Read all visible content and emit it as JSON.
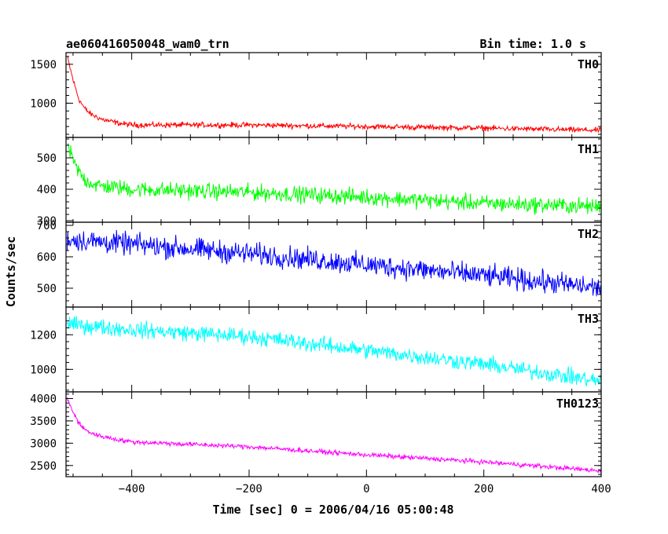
{
  "header": {
    "title": "ae060416050048_wam0_trn",
    "bin_time": "Bin time: 1.0 s"
  },
  "chart_data": {
    "type": "line",
    "title": "ae060416050048_wam0_trn",
    "subtitle": "Bin time: 1.0 s",
    "xlabel": "Time [sec] 0 = 2006/04/16 05:00:48",
    "ylabel": "Counts/sec",
    "xlim": [
      -512,
      400
    ],
    "x_ticks": [
      -400,
      -200,
      0,
      200,
      400
    ],
    "x_tick_labels": [
      "−400",
      "−200",
      "0",
      "200",
      "400"
    ],
    "panels": [
      {
        "name": "TH0",
        "color": "#ff0000",
        "ylim": [
          560,
          1650
        ],
        "y_ticks": [
          1000,
          1500
        ],
        "y_tick_labels": [
          "1000",
          "1500"
        ],
        "series_points": [
          [
            -510,
            1600
          ],
          [
            -500,
            1300
          ],
          [
            -490,
            1050
          ],
          [
            -480,
            930
          ],
          [
            -470,
            860
          ],
          [
            -450,
            790
          ],
          [
            -420,
            740
          ],
          [
            -400,
            720
          ],
          [
            -200,
            720
          ],
          [
            0,
            700
          ],
          [
            200,
            680
          ],
          [
            400,
            650
          ]
        ],
        "noise": 30
      },
      {
        "name": "TH1",
        "color": "#00ff00",
        "ylim": [
          295,
          565
        ],
        "y_ticks": [
          300,
          400,
          500
        ],
        "y_tick_labels": [
          "300",
          "400",
          "500"
        ],
        "series_points": [
          [
            -510,
            545
          ],
          [
            -500,
            490
          ],
          [
            -490,
            455
          ],
          [
            -480,
            430
          ],
          [
            -460,
            412
          ],
          [
            -400,
            400
          ],
          [
            -200,
            390
          ],
          [
            0,
            375
          ],
          [
            200,
            355
          ],
          [
            400,
            345
          ]
        ],
        "noise": 22
      },
      {
        "name": "TH2",
        "color": "#0000ff",
        "ylim": [
          440,
          710
        ],
        "y_ticks": [
          500,
          600,
          700
        ],
        "y_tick_labels": [
          "500",
          "600",
          "700"
        ],
        "series_points": [
          [
            -510,
            655
          ],
          [
            -400,
            640
          ],
          [
            -200,
            610
          ],
          [
            0,
            575
          ],
          [
            200,
            540
          ],
          [
            400,
            500
          ]
        ],
        "noise": 30
      },
      {
        "name": "TH3",
        "color": "#00ffff",
        "ylim": [
          870,
          1360
        ],
        "y_ticks": [
          1000,
          1200
        ],
        "y_tick_labels": [
          "1000",
          "1200"
        ],
        "series_points": [
          [
            -510,
            1260
          ],
          [
            -400,
            1230
          ],
          [
            -200,
            1190
          ],
          [
            0,
            1110
          ],
          [
            200,
            1030
          ],
          [
            400,
            930
          ]
        ],
        "noise": 40
      },
      {
        "name": "TH0123",
        "color": "#ff00ff",
        "ylim": [
          2250,
          4150
        ],
        "y_ticks": [
          2500,
          3000,
          3500,
          4000
        ],
        "y_tick_labels": [
          "2500",
          "3000",
          "3500",
          "4000"
        ],
        "series_points": [
          [
            -510,
            4000
          ],
          [
            -500,
            3700
          ],
          [
            -490,
            3450
          ],
          [
            -480,
            3300
          ],
          [
            -460,
            3180
          ],
          [
            -420,
            3070
          ],
          [
            -400,
            3030
          ],
          [
            -200,
            2920
          ],
          [
            0,
            2740
          ],
          [
            200,
            2580
          ],
          [
            400,
            2380
          ]
        ],
        "noise": 45
      }
    ]
  }
}
